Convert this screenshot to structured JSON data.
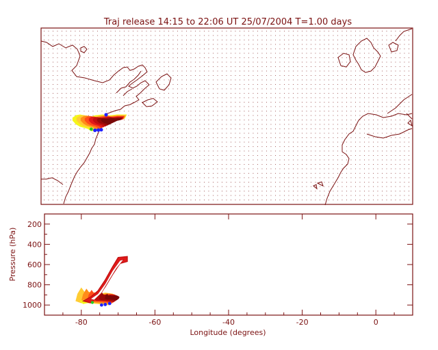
{
  "title": "Traj release 14:15 to 22:06 UT 25/07/2004    T=1.00 days",
  "colors": {
    "axis": "#7a1010",
    "coast": "#7a1010",
    "dots": "#7a1010",
    "traj": [
      "#f5f51a",
      "#ffcc33",
      "#ff8c1a",
      "#ff4d1a",
      "#e01a1a",
      "#c00f0f",
      "#9a0a0a",
      "#7a0808"
    ],
    "start_marker": "#2020ff",
    "green_marker": "#22cc22"
  },
  "chart_data": [
    {
      "type": "map",
      "name": "trajectory map",
      "projection": "lon-lat",
      "xlim": [
        -90,
        10
      ],
      "ylim": [
        15,
        75
      ],
      "grid_dots": true,
      "plume_outline": [
        [
          -81.5,
          44.5
        ],
        [
          -80.5,
          45.3
        ],
        [
          -79.5,
          45.5
        ],
        [
          -77.5,
          45.0
        ],
        [
          -76.5,
          44.8
        ],
        [
          -75.5,
          45.2
        ],
        [
          -73.5,
          45.5
        ],
        [
          -71.5,
          45.2
        ],
        [
          -69.5,
          45.5
        ],
        [
          -67.0,
          45.5
        ],
        [
          -67.5,
          44.2
        ],
        [
          -70.0,
          43.5
        ],
        [
          -72.0,
          42.3
        ],
        [
          -74.5,
          40.8
        ],
        [
          -75.5,
          40.0
        ],
        [
          -76.5,
          40.0
        ],
        [
          -77.5,
          40.8
        ],
        [
          -79.5,
          41.5
        ],
        [
          -80.5,
          42.2
        ],
        [
          -81.5,
          43.5
        ]
      ],
      "start_points": [
        [
          -75.5,
          40.2
        ],
        [
          -74.6,
          40.3
        ],
        [
          -73.8,
          40.4
        ],
        [
          -72.5,
          45.5
        ]
      ],
      "green_point": [
        -76.5,
        40.6
      ]
    },
    {
      "type": "scatter",
      "name": "pressure vs longitude",
      "xlabel": "Longitude  (degrees)",
      "ylabel": "Pressure  (hPa)",
      "xlim": [
        -90,
        10
      ],
      "ylim": [
        1100,
        100
      ],
      "xticks": [
        -80,
        -60,
        -40,
        -20,
        0
      ],
      "yticks": [
        200,
        400,
        600,
        800,
        1000
      ],
      "ascent_band": [
        [
          -79.5,
          960
        ],
        [
          -77.5,
          920
        ],
        [
          -75.5,
          860
        ],
        [
          -73.5,
          750
        ],
        [
          -71.5,
          620
        ],
        [
          -70.0,
          530
        ],
        [
          -67.5,
          520
        ],
        [
          -67.5,
          570
        ],
        [
          -69.5,
          590
        ],
        [
          -71.5,
          700
        ],
        [
          -73.5,
          820
        ],
        [
          -75.5,
          920
        ],
        [
          -77.5,
          980
        ]
      ],
      "low_cluster": [
        [
          -81.5,
          960
        ],
        [
          -81.0,
          890
        ],
        [
          -80.0,
          830
        ],
        [
          -79.0,
          880
        ],
        [
          -77.5,
          870
        ],
        [
          -76.0,
          900
        ],
        [
          -73.5,
          880
        ],
        [
          -71.5,
          890
        ],
        [
          -70.5,
          920
        ],
        [
          -71.0,
          960
        ],
        [
          -72.5,
          1000
        ],
        [
          -75.0,
          990
        ],
        [
          -77.5,
          980
        ],
        [
          -80.0,
          980
        ]
      ],
      "start_points": [
        [
          -74.5,
          1000
        ],
        [
          -73.5,
          995
        ],
        [
          -72.3,
          985
        ]
      ],
      "green_point": [
        -77.0,
        975
      ]
    }
  ]
}
